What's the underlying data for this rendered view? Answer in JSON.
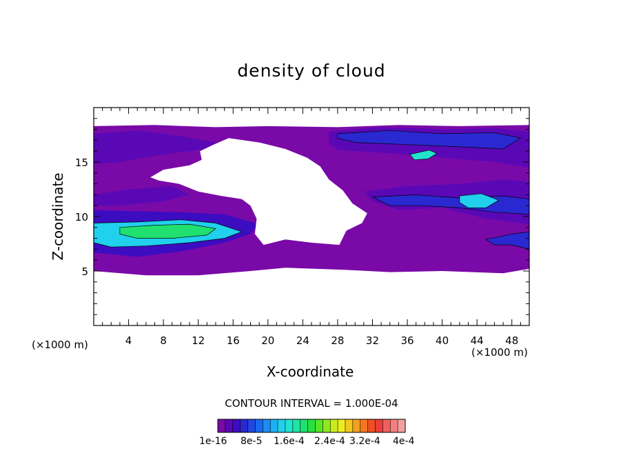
{
  "chart_data": {
    "type": "heatmap",
    "title": "density of cloud",
    "xlabel": "X-coordinate",
    "ylabel": "Z-coordinate",
    "x_unit_label": "(×1000 m)",
    "xlim": [
      0,
      50
    ],
    "ylim": [
      0,
      20
    ],
    "x_ticks": [
      4,
      8,
      12,
      16,
      20,
      24,
      28,
      32,
      36,
      40,
      44,
      48
    ],
    "x_tick_labels": [
      "4",
      "8",
      "12",
      "16",
      "20",
      "24",
      "28",
      "32",
      "36",
      "40",
      "44",
      "48"
    ],
    "y_ticks": [
      5,
      10,
      15
    ],
    "y_tick_labels": [
      "5",
      "10",
      "15"
    ],
    "contour_interval": "CONTOUR INTERVAL = 1.000E-04",
    "colorbar": {
      "labels": [
        "1e-16",
        "8e-5",
        "1.6e-4",
        "2.4e-4",
        "3.2e-4",
        "4e-4"
      ],
      "label_values": [
        0,
        8e-05,
        0.00016,
        0.00024,
        0.00032,
        0.0004
      ],
      "colors": [
        "#7a0aa8",
        "#5a08b6",
        "#3c0cc0",
        "#2a28d0",
        "#1e48e0",
        "#1a68ee",
        "#1c8cf4",
        "#1eb0f4",
        "#20d0ec",
        "#22e4cc",
        "#20e4a4",
        "#20e070",
        "#28e040",
        "#58e428",
        "#90e820",
        "#c8ec20",
        "#ecec20",
        "#f4c820",
        "#f4a020",
        "#f47820",
        "#f05020",
        "#ec3c3c",
        "#f06060",
        "#f48080",
        "#f4a0a0"
      ]
    },
    "regions": [
      {
        "level": 1e-05,
        "points": [
          [
            0,
            18.3
          ],
          [
            7,
            18.4
          ],
          [
            14,
            18.2
          ],
          [
            20,
            18.3
          ],
          [
            28,
            18.2
          ],
          [
            35,
            18.4
          ],
          [
            42,
            18.3
          ],
          [
            50,
            18.4
          ],
          [
            50,
            5.2
          ],
          [
            47,
            4.8
          ],
          [
            40,
            5.0
          ],
          [
            34,
            4.9
          ],
          [
            29,
            5.1
          ],
          [
            22,
            5.3
          ],
          [
            18,
            5.0
          ],
          [
            12,
            4.6
          ],
          [
            6,
            4.6
          ],
          [
            0,
            5.0
          ]
        ]
      },
      {
        "level": 3e-05,
        "points": [
          [
            0,
            17.6
          ],
          [
            5,
            17.9
          ],
          [
            10,
            17.4
          ],
          [
            14,
            16.8
          ],
          [
            13,
            16.2
          ],
          [
            8,
            15.7
          ],
          [
            3,
            15.0
          ],
          [
            0,
            14.8
          ]
        ]
      },
      {
        "level": 3e-05,
        "points": [
          [
            27,
            17.8
          ],
          [
            33,
            18.2
          ],
          [
            40,
            18.0
          ],
          [
            46,
            18.1
          ],
          [
            50,
            17.8
          ],
          [
            50,
            14.5
          ],
          [
            46,
            15.0
          ],
          [
            40,
            15.4
          ],
          [
            34,
            15.8
          ],
          [
            28,
            16.1
          ],
          [
            27,
            16.8
          ]
        ]
      },
      {
        "level": 6e-05,
        "points": [
          [
            28,
            17.6
          ],
          [
            34,
            17.9
          ],
          [
            40,
            17.6
          ],
          [
            46,
            17.7
          ],
          [
            49,
            17.2
          ],
          [
            47,
            16.2
          ],
          [
            42,
            16.4
          ],
          [
            36,
            16.6
          ],
          [
            30,
            16.8
          ],
          [
            28,
            17.2
          ]
        ]
      },
      {
        "level": 3e-05,
        "points": [
          [
            0,
            12.0
          ],
          [
            4,
            12.5
          ],
          [
            9,
            12.8
          ],
          [
            11,
            12.0
          ],
          [
            8,
            11.4
          ],
          [
            3,
            11.0
          ],
          [
            0,
            11.0
          ]
        ]
      },
      {
        "level": 4e-05,
        "points": [
          [
            0,
            10.6
          ],
          [
            4,
            10.5
          ],
          [
            10,
            10.4
          ],
          [
            15,
            10.2
          ],
          [
            19,
            9.3
          ],
          [
            18,
            8.4
          ],
          [
            15,
            7.6
          ],
          [
            10,
            6.8
          ],
          [
            5,
            6.3
          ],
          [
            0,
            6.7
          ]
        ]
      },
      {
        "level": 0.00014,
        "points": [
          [
            0,
            9.4
          ],
          [
            5,
            9.5
          ],
          [
            10,
            9.7
          ],
          [
            14,
            9.4
          ],
          [
            17,
            8.6
          ],
          [
            15,
            8.0
          ],
          [
            11,
            7.6
          ],
          [
            6,
            7.3
          ],
          [
            2,
            7.2
          ],
          [
            0,
            7.6
          ]
        ]
      },
      {
        "level": 0.00018,
        "points": [
          [
            3,
            9.0
          ],
          [
            7,
            9.2
          ],
          [
            11,
            9.3
          ],
          [
            14,
            8.9
          ],
          [
            13,
            8.3
          ],
          [
            9,
            8.0
          ],
          [
            5,
            8.0
          ],
          [
            3,
            8.4
          ]
        ]
      },
      {
        "level": 3e-05,
        "points": [
          [
            31,
            12.3
          ],
          [
            36,
            12.8
          ],
          [
            42,
            13.0
          ],
          [
            47,
            13.4
          ],
          [
            50,
            13.2
          ],
          [
            50,
            9.3
          ],
          [
            45,
            9.8
          ],
          [
            40,
            10.8
          ],
          [
            35,
            10.6
          ],
          [
            32,
            11.4
          ]
        ]
      },
      {
        "level": 6e-05,
        "points": [
          [
            32,
            11.8
          ],
          [
            37,
            12.0
          ],
          [
            42,
            11.7
          ],
          [
            47,
            11.9
          ],
          [
            50,
            11.6
          ],
          [
            50,
            10.2
          ],
          [
            46,
            10.4
          ],
          [
            42,
            10.8
          ],
          [
            38,
            11.0
          ],
          [
            34,
            11.0
          ]
        ]
      },
      {
        "level": 0.00013,
        "points": [
          [
            42,
            11.9
          ],
          [
            44.5,
            12.1
          ],
          [
            46.5,
            11.5
          ],
          [
            45,
            10.8
          ],
          [
            43,
            10.8
          ],
          [
            42,
            11.3
          ]
        ]
      },
      {
        "level": 5e-05,
        "points": [
          [
            45,
            7.9
          ],
          [
            48,
            8.4
          ],
          [
            50,
            8.6
          ],
          [
            50,
            7.0
          ],
          [
            48,
            7.4
          ],
          [
            46,
            7.4
          ]
        ]
      },
      {
        "level": 0.00015,
        "points": [
          [
            36.3,
            15.7
          ],
          [
            38.5,
            16.1
          ],
          [
            39.4,
            15.8
          ],
          [
            38.4,
            15.3
          ],
          [
            36.8,
            15.2
          ]
        ]
      }
    ],
    "gaps": [
      [
        [
          13.5,
          16.5
        ],
        [
          15.5,
          17.2
        ],
        [
          19,
          16.8
        ],
        [
          22,
          16.2
        ],
        [
          24.5,
          15.4
        ],
        [
          26,
          14.6
        ],
        [
          27,
          13.4
        ],
        [
          28.6,
          12.4
        ],
        [
          29.7,
          11.2
        ],
        [
          31.4,
          10.3
        ],
        [
          30.8,
          9.4
        ],
        [
          29,
          8.7
        ],
        [
          28.2,
          7.4
        ],
        [
          25,
          7.6
        ],
        [
          22,
          7.9
        ],
        [
          19.5,
          7.4
        ],
        [
          18.5,
          8.4
        ],
        [
          18.7,
          9.8
        ],
        [
          18,
          11.0
        ],
        [
          17,
          11.6
        ],
        [
          14.6,
          11.9
        ],
        [
          12,
          12.3
        ],
        [
          9.8,
          13.0
        ],
        [
          7.5,
          13.3
        ],
        [
          6.5,
          13.6
        ],
        [
          8,
          14.3
        ],
        [
          11,
          14.7
        ],
        [
          12.4,
          15.2
        ],
        [
          12.2,
          16.0
        ]
      ]
    ]
  }
}
